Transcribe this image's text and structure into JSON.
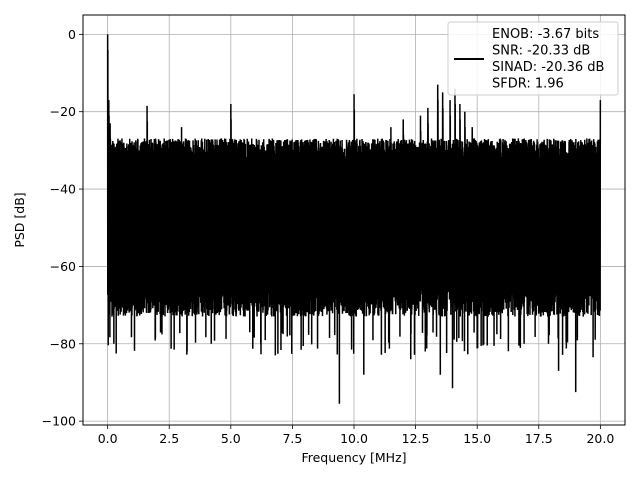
{
  "chart_data": {
    "type": "line",
    "title": "",
    "xlabel": "Frequency [MHz]",
    "ylabel": "PSD [dB]",
    "xlim": [
      -1.0,
      21.0
    ],
    "ylim": [
      -101,
      5
    ],
    "xticks": [
      0.0,
      2.5,
      5.0,
      7.5,
      10.0,
      12.5,
      15.0,
      17.5,
      20.0
    ],
    "xtick_labels": [
      "0.0",
      "2.5",
      "5.0",
      "7.5",
      "10.0",
      "12.5",
      "15.0",
      "17.5",
      "20.0"
    ],
    "yticks": [
      0,
      -20,
      -40,
      -60,
      -80,
      -100
    ],
    "ytick_labels": [
      "0",
      "−20",
      "−40",
      "−60",
      "−80",
      "−100"
    ],
    "grid": true,
    "legend_position": "top-right",
    "series_color": "#000000",
    "legend_lines": [
      "ENOB: -3.67 bits",
      "SNR: -20.33 dB",
      "SINAD: -20.36 dB",
      "SFDR: 1.96"
    ],
    "noise_band": {
      "x_range": [
        0.0,
        20.0
      ],
      "upper_envelope_db": -29,
      "lower_envelope_db": -70,
      "typical_deep_nulls_db": -80
    },
    "peaks": [
      {
        "x": 0.0,
        "y": 0
      },
      {
        "x": 0.05,
        "y": -17
      },
      {
        "x": 0.1,
        "y": -23
      },
      {
        "x": 1.6,
        "y": -18.5
      },
      {
        "x": 3.0,
        "y": -24
      },
      {
        "x": 5.0,
        "y": -18
      },
      {
        "x": 10.0,
        "y": -15.5
      },
      {
        "x": 11.5,
        "y": -24
      },
      {
        "x": 12.0,
        "y": -22
      },
      {
        "x": 12.7,
        "y": -21
      },
      {
        "x": 13.0,
        "y": -19
      },
      {
        "x": 13.4,
        "y": -13
      },
      {
        "x": 13.6,
        "y": -15
      },
      {
        "x": 13.9,
        "y": -17
      },
      {
        "x": 14.1,
        "y": -14
      },
      {
        "x": 14.3,
        "y": -18
      },
      {
        "x": 14.5,
        "y": -20
      },
      {
        "x": 14.8,
        "y": -24
      },
      {
        "x": 20.0,
        "y": -17
      }
    ],
    "dips": [
      {
        "x": 0.35,
        "y": -82.5
      },
      {
        "x": 2.7,
        "y": -81.5
      },
      {
        "x": 4.2,
        "y": -80
      },
      {
        "x": 6.8,
        "y": -83
      },
      {
        "x": 9.4,
        "y": -95.5
      },
      {
        "x": 9.9,
        "y": -81.5
      },
      {
        "x": 10.4,
        "y": -88
      },
      {
        "x": 12.3,
        "y": -84
      },
      {
        "x": 13.5,
        "y": -88
      },
      {
        "x": 14.0,
        "y": -91.5
      },
      {
        "x": 16.9,
        "y": -80
      },
      {
        "x": 18.3,
        "y": -87
      },
      {
        "x": 19.0,
        "y": -92.5
      },
      {
        "x": 19.7,
        "y": -83.5
      }
    ]
  }
}
